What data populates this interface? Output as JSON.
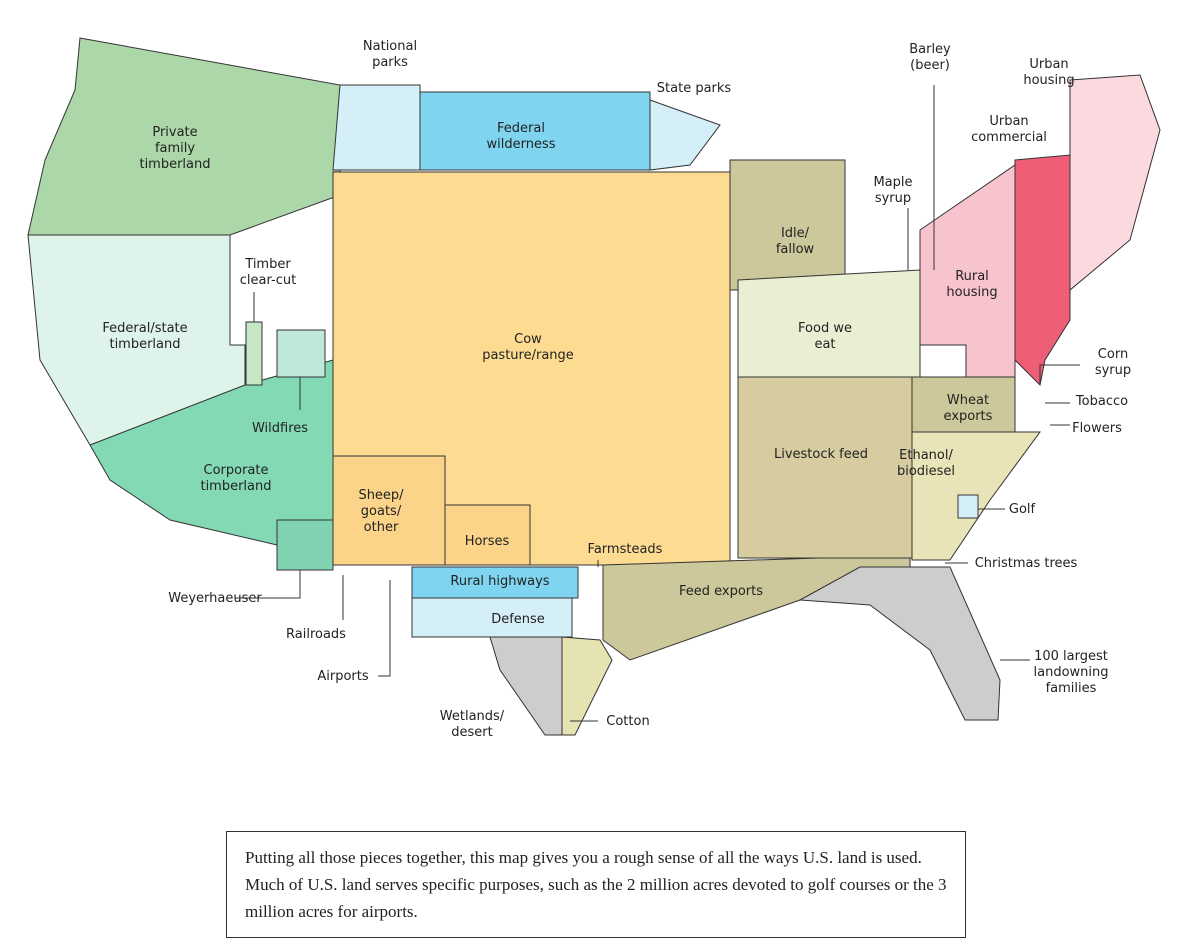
{
  "regions": [
    {
      "lines": [
        "Private",
        "family",
        "timberland"
      ],
      "color": "#acd7a8"
    },
    {
      "lines": [
        "Federal/state",
        "timberland"
      ],
      "color": "#def3ea"
    },
    {
      "lines": [
        "Corporate",
        "timberland"
      ],
      "color": "#84d9b5"
    },
    {
      "lines": [
        "Weyerhaeuser"
      ],
      "color": "#7fd3b0"
    },
    {
      "lines": [
        "Timber",
        "clear-cut"
      ],
      "color": "#c6e6c4"
    },
    {
      "lines": [
        "Wildfires"
      ],
      "color": "#bfe8dd"
    },
    {
      "lines": [
        "National",
        "parks"
      ],
      "color": "#d5eff9"
    },
    {
      "lines": [
        "Federal",
        "wilderness"
      ],
      "color": "#7fd4f0"
    },
    {
      "lines": [
        "State parks"
      ],
      "color": "#d5eff9"
    },
    {
      "lines": [
        "Cow",
        "pasture/range"
      ],
      "color": "#fddc92"
    },
    {
      "lines": [
        "Sheep/",
        "goats/",
        "other"
      ],
      "color": "#fbd48a"
    },
    {
      "lines": [
        "Horses"
      ],
      "color": "#fbd48a"
    },
    {
      "lines": [
        "Farmsteads"
      ]
    },
    {
      "lines": [
        "Rural highways"
      ],
      "color": "#7fd4f0"
    },
    {
      "lines": [
        "Defense"
      ],
      "color": "#d5eff9"
    },
    {
      "lines": [
        "Railroads"
      ]
    },
    {
      "lines": [
        "Airports"
      ]
    },
    {
      "lines": [
        "Wetlands/",
        "desert"
      ],
      "color": "#cdcdcd"
    },
    {
      "lines": [
        "Cotton"
      ],
      "color": "#e6e3b2"
    },
    {
      "lines": [
        "Feed exports"
      ],
      "color": "#ccc89b"
    },
    {
      "lines": [
        "Livestock feed"
      ],
      "color": "#d6cca0"
    },
    {
      "lines": [
        "Idle/",
        "fallow"
      ],
      "color": "#ccc89b"
    },
    {
      "lines": [
        "Food we",
        "eat"
      ],
      "color": "#e9efd2"
    },
    {
      "lines": [
        "Maple",
        "syrup"
      ]
    },
    {
      "lines": [
        "Barley",
        "(beer)"
      ]
    },
    {
      "lines": [
        "Rural",
        "housing"
      ],
      "color": "#f7c3cc"
    },
    {
      "lines": [
        "Urban",
        "commercial"
      ],
      "color": "#ee5e76"
    },
    {
      "lines": [
        "Urban",
        "housing"
      ],
      "color": "#fbd9df"
    },
    {
      "lines": [
        "Corn",
        "syrup"
      ]
    },
    {
      "lines": [
        "Tobacco"
      ]
    },
    {
      "lines": [
        "Flowers"
      ]
    },
    {
      "lines": [
        "Wheat",
        "exports"
      ],
      "color": "#ccc89b"
    },
    {
      "lines": [
        "Ethanol/",
        "biodiesel"
      ],
      "color": "#e9e3b8"
    },
    {
      "lines": [
        "Golf"
      ],
      "color": "#d5eff9"
    },
    {
      "lines": [
        "Christmas trees"
      ]
    },
    {
      "lines": [
        "100 largest",
        "landowning",
        "families"
      ],
      "color": "#cdcdcd"
    }
  ],
  "caption": "Putting all those pieces together, this map gives you a rough sense of all the ways U.S. land is used. Much of U.S. land serves specific purposes, such as the 2 million acres devoted to golf courses or the 3 million acres for airports."
}
